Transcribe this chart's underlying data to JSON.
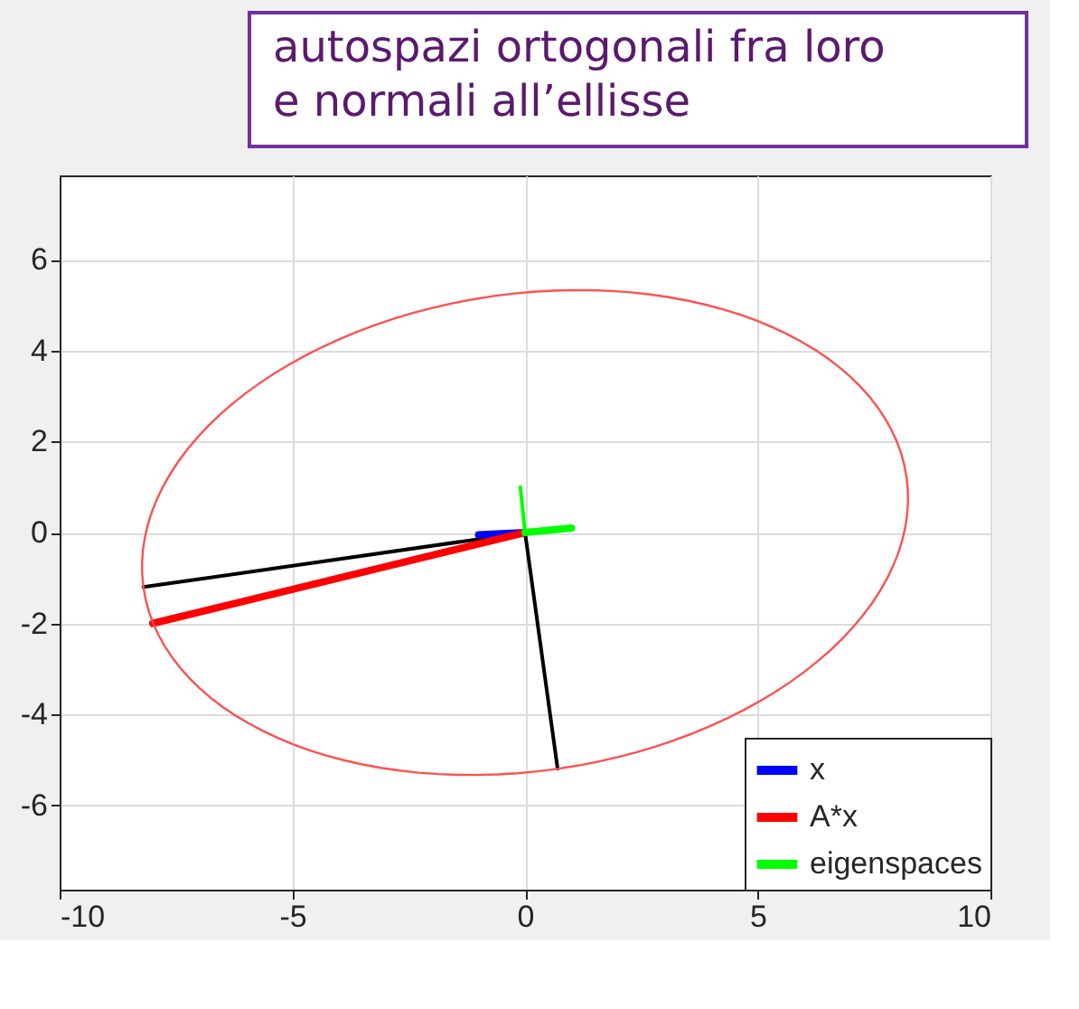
{
  "chart_data": {
    "type": "line",
    "annotations": [
      "autospazi ortogonali fra loro\ne normali all’ellisse"
    ],
    "xlim": [
      -10,
      10
    ],
    "ylim": [
      -7.86,
      7.86
    ],
    "xticks": [
      -10,
      -5,
      0,
      5,
      10
    ],
    "yticks": [
      -6,
      -4,
      -2,
      0,
      2,
      4,
      6
    ],
    "grid": true,
    "legend": "bottom right",
    "series": [
      {
        "color": "#000000",
        "x": [
          0,
          -8.2
        ],
        "values": [
          0,
          -1.2
        ]
      },
      {
        "color": "#000000",
        "x": [
          0,
          0.7
        ],
        "values": [
          0,
          -5.2
        ]
      },
      {
        "name": "x",
        "color": "#0000ff",
        "x": [
          0,
          -1.0
        ],
        "values": [
          0,
          -0.05
        ]
      },
      {
        "name": "A*x",
        "color": "#ff0000",
        "x": [
          0,
          -8.0
        ],
        "values": [
          0,
          -2.0
        ]
      },
      {
        "name": "eigenspaces",
        "color": "#00ff00",
        "x": [
          0,
          1.0
        ],
        "values": [
          0,
          0.1
        ]
      },
      {
        "color": "#00ff00",
        "x": [
          0,
          -0.1
        ],
        "values": [
          0,
          1.0
        ]
      }
    ]
  }
}
